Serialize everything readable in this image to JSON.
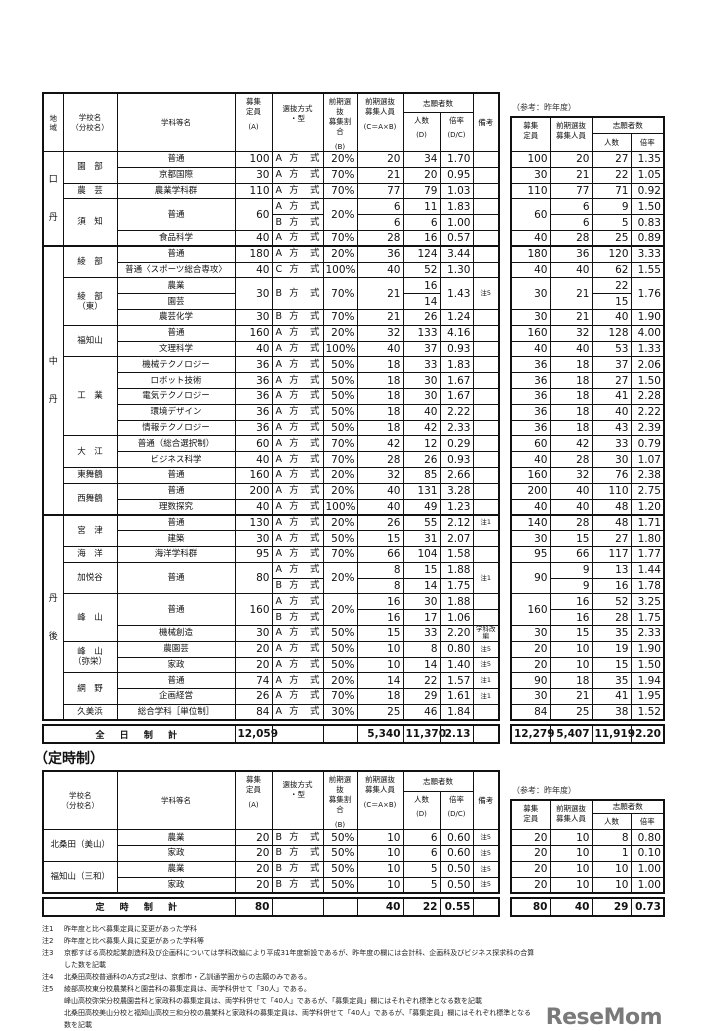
{
  "main": {
    "header": {
      "region": "地域",
      "school": "学校名\n（分校名）",
      "dept": "学科等名",
      "cap": "募集\n定員",
      "cap_sub": "(A)",
      "method": "選抜方式\n・型",
      "ratio": "前期選抜\n募集割合",
      "ratio_sub": "(B)",
      "early": "前期選抜\n募集人員",
      "early_sub": "(C＝A×B)",
      "applicants": "志願者数",
      "count": "人数",
      "count_sub": "(D)",
      "rate": "倍率",
      "rate_sub": "(D/C)",
      "note": "備考"
    },
    "rows": [
      [
        [
          "口",
          "丹"
        ],
        "園　部",
        "普通",
        "100",
        "A 方 式",
        "20%",
        "20",
        "34",
        "1.70",
        ""
      ],
      [
        null,
        null,
        "京都国際",
        "30",
        "A 方 式",
        "70%",
        "21",
        "20",
        "0.95",
        ""
      ],
      [
        null,
        "農　芸",
        "農業学科群",
        "110",
        "A 方 式",
        "70%",
        "77",
        "79",
        "1.03",
        ""
      ],
      [
        null,
        "須　知",
        "普通",
        "60",
        "A 方 式",
        "20%",
        "6",
        "11",
        "1.83",
        ""
      ],
      [
        null,
        null,
        null,
        null,
        "B 方 式",
        null,
        "6",
        "6",
        "1.00",
        ""
      ],
      [
        null,
        null,
        "食品科学",
        "40",
        "A 方 式",
        "70%",
        "28",
        "16",
        "0.57",
        ""
      ],
      [
        [
          "中",
          "丹"
        ],
        "綾　部",
        "普通",
        "180",
        "A 方 式",
        "20%",
        "36",
        "124",
        "3.44",
        ""
      ],
      [
        null,
        null,
        "普通〈スポーツ総合専攻〉",
        "40",
        "C 方 式",
        "100%",
        "40",
        "52",
        "1.30",
        ""
      ],
      [
        null,
        "綾　部\n（東）",
        "農業",
        "30",
        "B 方 式",
        "70%",
        "21",
        "16",
        "1.43",
        "注5"
      ],
      [
        null,
        null,
        "園芸",
        null,
        null,
        null,
        null,
        "14",
        null,
        null
      ],
      [
        null,
        null,
        "農芸化学",
        "30",
        "B 方 式",
        "70%",
        "21",
        "26",
        "1.24",
        ""
      ],
      [
        null,
        "福知山",
        "普通",
        "160",
        "A 方 式",
        "20%",
        "32",
        "133",
        "4.16",
        ""
      ],
      [
        null,
        null,
        "文理科学",
        "40",
        "A 方 式",
        "100%",
        "40",
        "37",
        "0.93",
        ""
      ],
      [
        null,
        "工　業",
        "機械テクノロジー",
        "36",
        "A 方 式",
        "50%",
        "18",
        "33",
        "1.83",
        ""
      ],
      [
        null,
        null,
        "ロボット技術",
        "36",
        "A 方 式",
        "50%",
        "18",
        "30",
        "1.67",
        ""
      ],
      [
        null,
        null,
        "電気テクノロジー",
        "36",
        "A 方 式",
        "50%",
        "18",
        "30",
        "1.67",
        ""
      ],
      [
        null,
        null,
        "環境デザイン",
        "36",
        "A 方 式",
        "50%",
        "18",
        "40",
        "2.22",
        ""
      ],
      [
        null,
        null,
        "情報テクノロジー",
        "36",
        "A 方 式",
        "50%",
        "18",
        "42",
        "2.33",
        ""
      ],
      [
        null,
        "大　江",
        "普通（総合選択制）",
        "60",
        "A 方 式",
        "70%",
        "42",
        "12",
        "0.29",
        ""
      ],
      [
        null,
        null,
        "ビジネス科学",
        "40",
        "A 方 式",
        "70%",
        "28",
        "26",
        "0.93",
        ""
      ],
      [
        null,
        "東舞鶴",
        "普通",
        "160",
        "A 方 式",
        "20%",
        "32",
        "85",
        "2.66",
        ""
      ],
      [
        null,
        "西舞鶴",
        "普通",
        "200",
        "A 方 式",
        "20%",
        "40",
        "131",
        "3.28",
        ""
      ],
      [
        null,
        null,
        "理数探究",
        "40",
        "A 方 式",
        "100%",
        "40",
        "49",
        "1.23",
        ""
      ],
      [
        [
          "丹",
          "後"
        ],
        "宮　津",
        "普通",
        "130",
        "A 方 式",
        "20%",
        "26",
        "55",
        "2.12",
        "注1"
      ],
      [
        null,
        null,
        "建築",
        "30",
        "A 方 式",
        "50%",
        "15",
        "31",
        "2.07",
        ""
      ],
      [
        null,
        "海　洋",
        "海洋学科群",
        "95",
        "A 方 式",
        "70%",
        "66",
        "104",
        "1.58",
        ""
      ],
      [
        null,
        "加悦谷",
        "普通",
        "80",
        "A 方 式",
        "20%",
        "8",
        "15",
        "1.88",
        "注1"
      ],
      [
        null,
        null,
        null,
        null,
        "B 方 式",
        null,
        "8",
        "14",
        "1.75",
        null
      ],
      [
        null,
        "峰　山",
        "普通",
        "160",
        "A 方 式",
        "20%",
        "16",
        "30",
        "1.88",
        ""
      ],
      [
        null,
        null,
        null,
        null,
        "B 方 式",
        null,
        "16",
        "17",
        "1.06",
        ""
      ],
      [
        null,
        null,
        "機械創造",
        "30",
        "A 方 式",
        "50%",
        "15",
        "33",
        "2.20",
        "学科改編"
      ],
      [
        null,
        "峰　山\n（弥栄）",
        "農園芸",
        "20",
        "A 方 式",
        "50%",
        "10",
        "8",
        "0.80",
        "注5"
      ],
      [
        null,
        null,
        "家政",
        "20",
        "A 方 式",
        "50%",
        "10",
        "14",
        "1.40",
        "注5"
      ],
      [
        null,
        "網　野",
        "普通",
        "74",
        "A 方 式",
        "20%",
        "14",
        "22",
        "1.57",
        "注1"
      ],
      [
        null,
        null,
        "企画経営",
        "26",
        "A 方 式",
        "70%",
        "18",
        "29",
        "1.61",
        "注1"
      ],
      [
        null,
        "久美浜",
        "総合学科［単位制］",
        "84",
        "A 方 式",
        "30%",
        "25",
        "46",
        "1.84",
        ""
      ]
    ],
    "total": {
      "label": "全 日 制 計",
      "cap": "12,059",
      "early": "5,340",
      "applicants": "11,370",
      "rate": "2.13"
    }
  },
  "prev": {
    "caption": "（参考：昨年度）",
    "header": {
      "cap": "募集\n定員",
      "early": "前期選抜\n募集人員",
      "applicants": "志願者数",
      "count": "人数",
      "rate": "倍率"
    },
    "rows": [
      [
        "100",
        "20",
        "27",
        "1.35"
      ],
      [
        "30",
        "21",
        "22",
        "1.05"
      ],
      [
        "110",
        "77",
        "71",
        "0.92"
      ],
      [
        "60",
        "6",
        "9",
        "1.50"
      ],
      [
        null,
        "6",
        "5",
        "0.83"
      ],
      [
        "40",
        "28",
        "25",
        "0.89"
      ],
      [
        "180",
        "36",
        "120",
        "3.33"
      ],
      [
        "40",
        "40",
        "62",
        "1.55"
      ],
      [
        "30",
        "21",
        "22",
        "1.76"
      ],
      [
        null,
        null,
        "15",
        null
      ],
      [
        "30",
        "21",
        "40",
        "1.90"
      ],
      [
        "160",
        "32",
        "128",
        "4.00"
      ],
      [
        "40",
        "40",
        "53",
        "1.33"
      ],
      [
        "36",
        "18",
        "37",
        "2.06"
      ],
      [
        "36",
        "18",
        "27",
        "1.50"
      ],
      [
        "36",
        "18",
        "41",
        "2.28"
      ],
      [
        "36",
        "18",
        "40",
        "2.22"
      ],
      [
        "36",
        "18",
        "43",
        "2.39"
      ],
      [
        "60",
        "42",
        "33",
        "0.79"
      ],
      [
        "40",
        "28",
        "30",
        "1.07"
      ],
      [
        "160",
        "32",
        "76",
        "2.38"
      ],
      [
        "200",
        "40",
        "110",
        "2.75"
      ],
      [
        "40",
        "40",
        "48",
        "1.20"
      ],
      [
        "140",
        "28",
        "48",
        "1.71"
      ],
      [
        "30",
        "15",
        "27",
        "1.80"
      ],
      [
        "95",
        "66",
        "117",
        "1.77"
      ],
      [
        "90",
        "9",
        "13",
        "1.44"
      ],
      [
        null,
        "9",
        "16",
        "1.78"
      ],
      [
        "160",
        "16",
        "52",
        "3.25"
      ],
      [
        null,
        "16",
        "28",
        "1.75"
      ],
      [
        "30",
        "15",
        "35",
        "2.33"
      ],
      [
        "20",
        "10",
        "19",
        "1.90"
      ],
      [
        "20",
        "10",
        "15",
        "1.50"
      ],
      [
        "90",
        "18",
        "35",
        "1.94"
      ],
      [
        "30",
        "21",
        "41",
        "1.95"
      ],
      [
        "84",
        "25",
        "38",
        "1.52"
      ]
    ],
    "total": {
      "cap": "12,279",
      "early": "5,407",
      "applicants": "11,919",
      "rate": "2.20"
    }
  },
  "parttime": {
    "title": "（定時制）",
    "rows": [
      [
        "北桑田（美山）",
        "農業",
        "20",
        "B 方 式",
        "50%",
        "10",
        "6",
        "0.60",
        "注5"
      ],
      [
        null,
        "家政",
        "20",
        "B 方 式",
        "50%",
        "10",
        "6",
        "0.60",
        "注5"
      ],
      [
        "福知山（三和）",
        "農業",
        "20",
        "B 方 式",
        "50%",
        "10",
        "5",
        "0.50",
        "注5"
      ],
      [
        null,
        "家政",
        "20",
        "B 方 式",
        "50%",
        "10",
        "5",
        "0.50",
        "注5"
      ]
    ],
    "total": {
      "label": "定 時 制 計",
      "cap": "80",
      "early": "40",
      "applicants": "22",
      "rate": "0.55"
    },
    "prev_rows": [
      [
        "20",
        "10",
        "8",
        "0.80"
      ],
      [
        "20",
        "10",
        "1",
        "0.10"
      ],
      [
        "20",
        "10",
        "10",
        "1.00"
      ],
      [
        "20",
        "10",
        "10",
        "1.00"
      ]
    ],
    "prev_total": {
      "cap": "80",
      "early": "40",
      "applicants": "29",
      "rate": "0.73"
    }
  },
  "notes": [
    {
      "key": "注1",
      "text": "昨年度と比べ募集定員に変更があった学科"
    },
    {
      "key": "注2",
      "text": "昨年度と比べ募集人員に変更があった学科等"
    },
    {
      "key": "注3",
      "text": "京都すばる高校起業創造科及び企画科については学科改編により平成31年度新設であるが、昨年度の欄には会計科、企画科及びビジネス探求科の合算した数を記載"
    },
    {
      "key": "注4",
      "text": "北桑田高校普通科のA方式2型は、京都市・乙訓通学圏からの志願のみである。"
    },
    {
      "key": "注5",
      "text": "綾部高校東分校農業科と園芸科の募集定員は、両学科併せて「30人」である。"
    },
    {
      "key": "",
      "text": "峰山高校弥栄分校農園芸科と家政科の募集定員は、両学科併せて「40人」であるが、「募集定員」欄にはそれぞれ標準となる数を記載"
    },
    {
      "key": "",
      "text": "北桑田高校美山分校と福知山高校三和分校の農業科と家政科の募集定員は、両学科併せて「40人」であるが、「募集定員」欄にはそれぞれ標準となる数を記載"
    }
  ],
  "logo": "ReseMom"
}
